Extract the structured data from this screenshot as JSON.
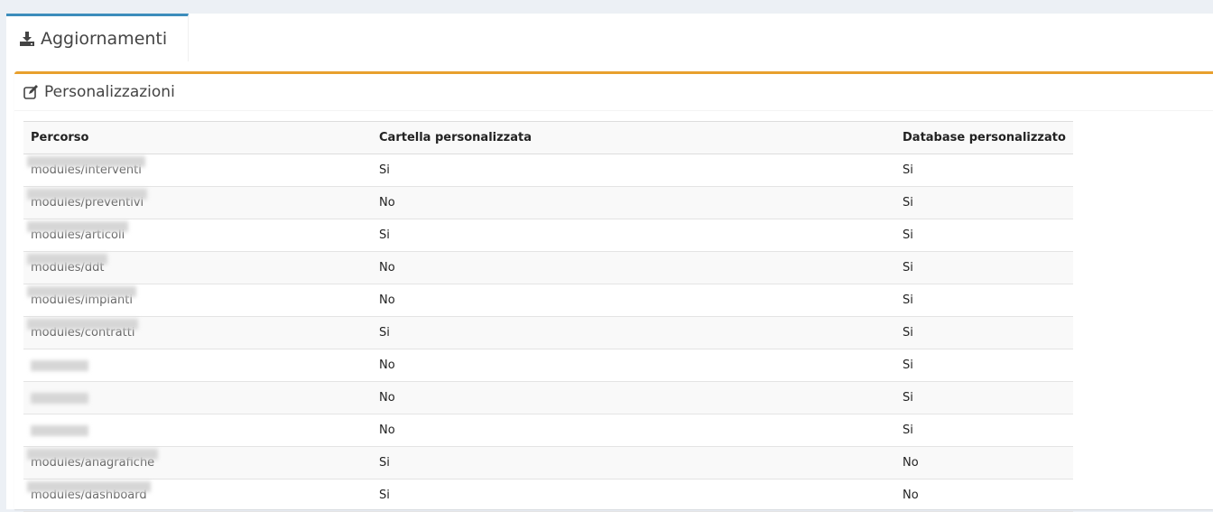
{
  "tab": {
    "label": "Aggiornamenti",
    "icon": "download-icon",
    "active_color": "#3c8dbc"
  },
  "box": {
    "title": "Personalizzazioni",
    "icon": "edit-icon",
    "accent": "#e8a02e"
  },
  "table": {
    "headers": [
      "Percorso",
      "Cartella personalizzata",
      "Database personalizzato"
    ],
    "rows": [
      {
        "path": "modules/interventi",
        "folder": "Si",
        "db": "Si"
      },
      {
        "path": "modules/preventivi",
        "folder": "No",
        "db": "Si"
      },
      {
        "path": "modules/articoli",
        "folder": "Si",
        "db": "Si"
      },
      {
        "path": "modules/ddt",
        "folder": "No",
        "db": "Si"
      },
      {
        "path": "modules/impianti",
        "folder": "No",
        "db": "Si"
      },
      {
        "path": "modules/contratti",
        "folder": "Si",
        "db": "Si"
      },
      {
        "path": "",
        "folder": "No",
        "db": "Si"
      },
      {
        "path": "",
        "folder": "No",
        "db": "Si"
      },
      {
        "path": "",
        "folder": "No",
        "db": "Si"
      },
      {
        "path": "modules/anagrafiche",
        "folder": "Si",
        "db": "No"
      },
      {
        "path": "modules/dashboard",
        "folder": "Si",
        "db": "No"
      }
    ]
  }
}
